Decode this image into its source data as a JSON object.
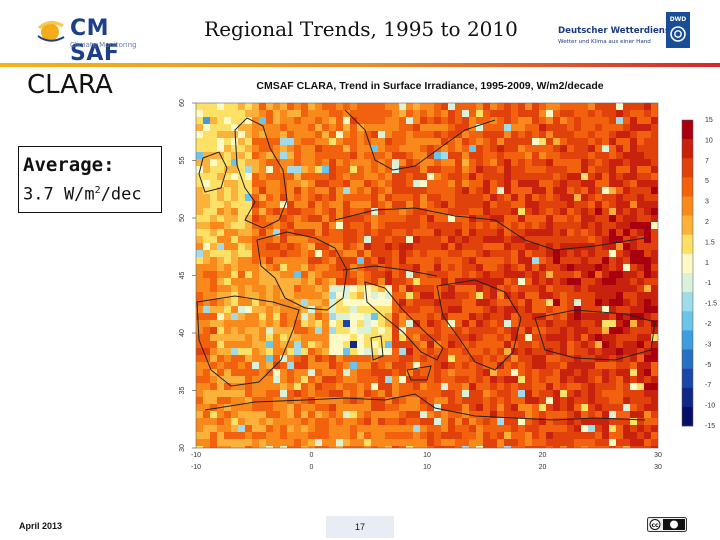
{
  "header": {
    "title": "Regional Trends, 1995 to 2010",
    "logo_left": {
      "text": "CM SAF",
      "subtext": "Climate Monitoring",
      "colors": {
        "sun": "#f3ad1c",
        "text": "#1d3f8a"
      }
    },
    "logo_right": {
      "name": "Deutscher Wetterdienst",
      "subtext": "Wetter und Klima aus einer Hand",
      "badge": "DWD",
      "color": "#1a3a86"
    },
    "rule_colors": [
      "#f2b416",
      "#e9902a",
      "#d7252b"
    ]
  },
  "side": {
    "heading": "CLARA",
    "average_label": "Average:",
    "average_value": "3.7 W/m",
    "average_exp": "2",
    "average_unit_tail": "/dec"
  },
  "chart_data": {
    "type": "heatmap",
    "title": "CMSAF CLARA, Trend in Surface Irradiance, 1995-2009, W/m2/decade",
    "x_ticks": [
      "-10",
      "0",
      "10",
      "20",
      "30"
    ],
    "x_minor_ticks": [
      "-10",
      "0",
      "10",
      "20",
      "30"
    ],
    "y_ticks": [
      "60",
      "55",
      "50",
      "45",
      "40",
      "35",
      "30"
    ],
    "xlim": [
      -10,
      30
    ],
    "ylim": [
      30,
      60
    ],
    "colorbar": {
      "labels": [
        "15",
        "10",
        "7",
        "5",
        "3",
        "2",
        "1.5",
        "1",
        "-1",
        "-1.5",
        "-2",
        "-3",
        "-5",
        "-7",
        "-10",
        "-15"
      ],
      "colors": [
        "#a8000f",
        "#c8210d",
        "#e1420c",
        "#f2620e",
        "#f8891a",
        "#fcb23a",
        "#fde166",
        "#fefac8",
        "#d9f2d9",
        "#9fdbe9",
        "#6cc4e8",
        "#3f9ddb",
        "#2a6fc6",
        "#1b46a9",
        "#102786",
        "#061064"
      ]
    },
    "average_trend": 3.7,
    "unit": "W/m2/decade",
    "period": "1995-2009",
    "colors": {
      "land_border": "#222222",
      "sea_background": "#e06a1d"
    }
  },
  "footer": {
    "date": "April 2013",
    "page": "17",
    "license_badge": "cc"
  }
}
